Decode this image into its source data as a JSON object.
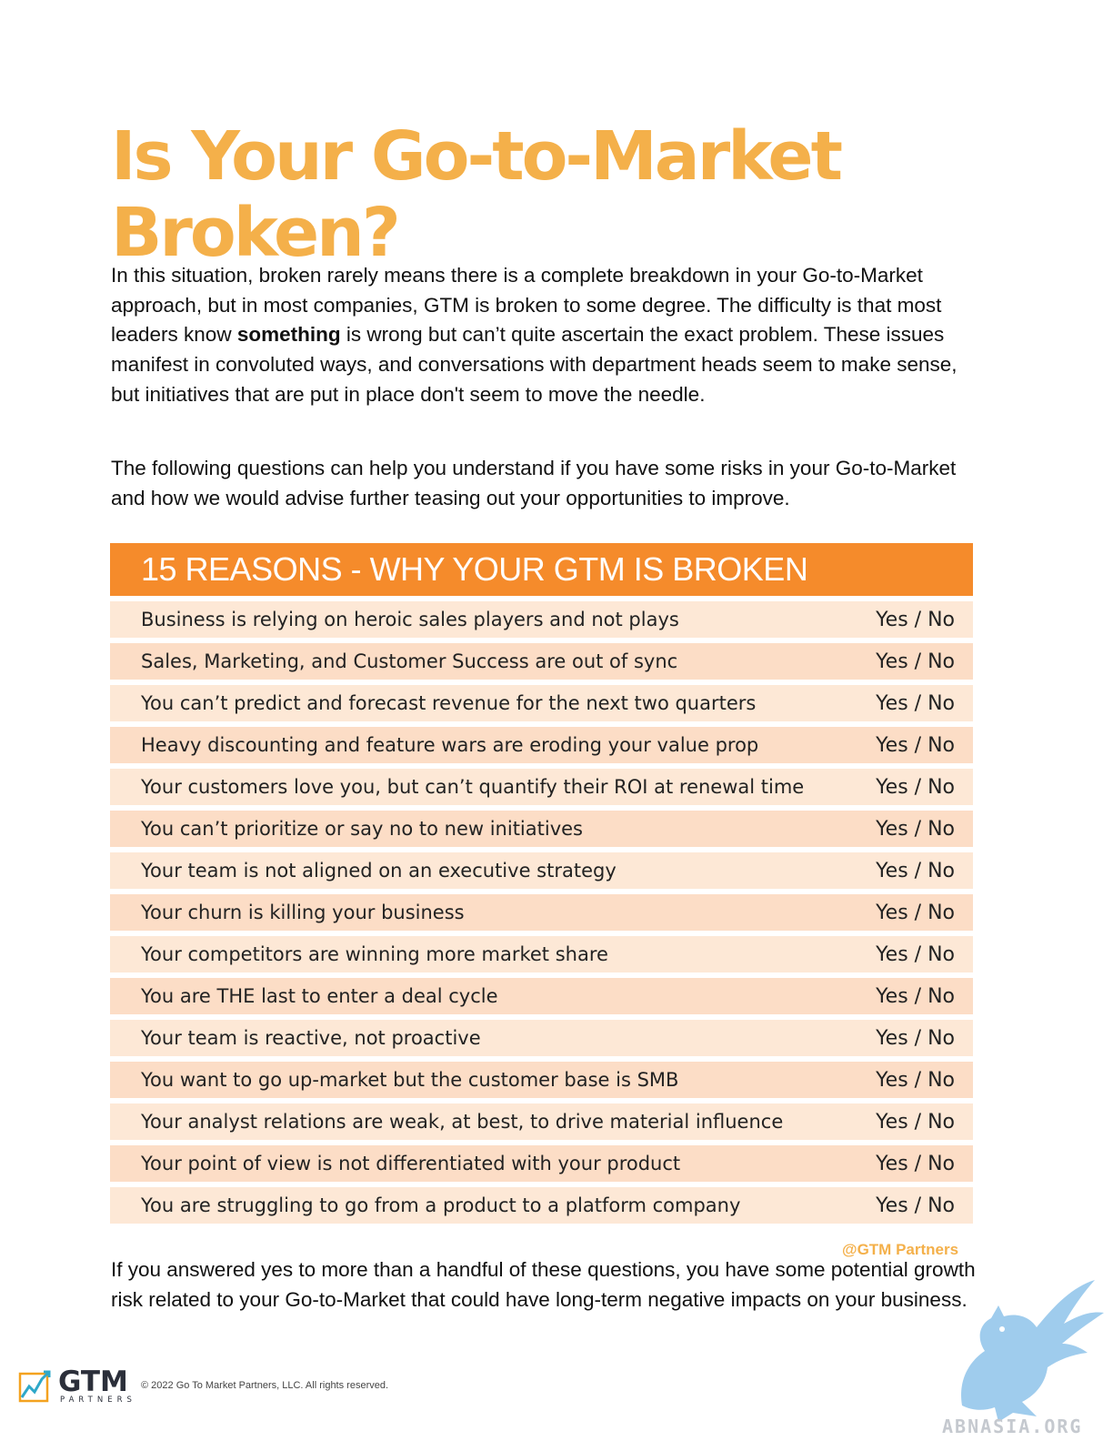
{
  "document": {
    "title": "Is Your Go-to-Market Broken?",
    "intro": {
      "before_bold": "In this situation, broken rarely means there is a complete breakdown in your Go-to-Market approach, but in most companies, GTM is broken to some degree. The difficulty is that most leaders know ",
      "bold": "something",
      "after_bold": " is wrong but can’t quite ascertain the exact problem. These issues manifest in convoluted ways, and conversations with department heads seem to make sense, but initiatives that are put in place don't seem to move the needle."
    },
    "lead_in": "The following questions can help you understand if you have some risks in your Go-to-Market and how we would advise further teasing out your opportunities to improve.",
    "table": {
      "header": "15 REASONS - WHY YOUR GTM IS BROKEN",
      "answer_label": "Yes / No",
      "rows": [
        "Business is relying on heroic sales players and not plays",
        "Sales, Marketing, and Customer Success are out of sync",
        "You can’t predict and forecast revenue for the next two quarters",
        "Heavy discounting and feature wars are eroding your value prop",
        "Your customers love you, but can’t quantify their ROI at renewal time",
        "You can’t prioritize or say no to new initiatives",
        "Your team is not aligned on an executive strategy",
        "Your churn is killing your business",
        "Your competitors are winning more market share",
        "You are THE last to enter a deal cycle",
        "Your team is reactive, not proactive",
        "You want to go up-market but the customer base is SMB",
        "Your analyst relations are weak, at best, to drive material influence",
        "Your point of view is not differentiated with your product",
        "You are struggling to go from a product to a platform company"
      ]
    },
    "credit": "@GTM Partners",
    "conclusion": "If you answered yes to more than a handful of these questions, you have some potential growth risk related to your Go-to-Market that could have long-term negative impacts on your business."
  },
  "footer": {
    "logo_text": "GTM",
    "logo_sub": "PARTNERS",
    "copyright": "© 2022 Go To Market Partners, LLC. All rights reserved."
  },
  "watermark": {
    "text": "ABNASIA.ORG",
    "icon": "griffin-icon"
  },
  "colors": {
    "title": "#f4b04a",
    "header_bg": "#f58b2b",
    "row_bg_a": "#fde8d6",
    "row_bg_b": "#fcddc6"
  }
}
